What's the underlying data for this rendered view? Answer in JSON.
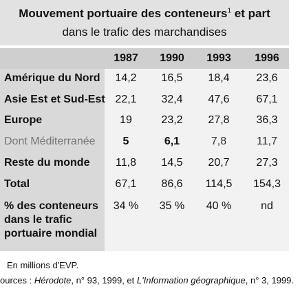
{
  "title": {
    "line1": [
      "Mouvement portuaire des conteneurs",
      "1",
      " et part"
    ],
    "line2": "dans le trafic des marchandises"
  },
  "table": {
    "header": [
      "1987",
      "1990",
      "1993",
      "1996"
    ],
    "rows": [
      {
        "label": [
          "Amérique du Nord"
        ],
        "cells": [
          "14,2",
          "16,5",
          "18,4",
          "23,6"
        ]
      },
      {
        "label": [
          "Asie Est et Sud-Est"
        ],
        "cells": [
          "22,1",
          "32,4",
          "47,6",
          "67,1"
        ]
      },
      {
        "label": [
          "Europe"
        ],
        "cells": [
          "19",
          "23,2",
          "27,8",
          "36,3"
        ]
      },
      {
        "label": [
          "Dont Méditerranée"
        ],
        "cells": [
          "5",
          "6,1",
          "7,8",
          "11,7"
        ]
      },
      {
        "label": [
          "Reste du monde"
        ],
        "cells": [
          "11,8",
          "14,5",
          "20,7",
          "27,3"
        ]
      },
      {
        "label": [
          "Total"
        ],
        "cells": [
          "67,1",
          "86,6",
          "114,5",
          "154,3"
        ]
      },
      {
        "label": [
          "% des conteneurs",
          "dans le trafic",
          "portuaire mondial"
        ],
        "cells": [
          "34 %",
          "35 %",
          "40 %",
          "nd"
        ]
      }
    ]
  },
  "footnotes": {
    "note": "En millions d'EVP.",
    "sources": [
      "ources : ",
      "Hérodote",
      ", n° 93, 1999, et ",
      "L'Information géographique",
      ", n° 3, 1999."
    ]
  }
}
